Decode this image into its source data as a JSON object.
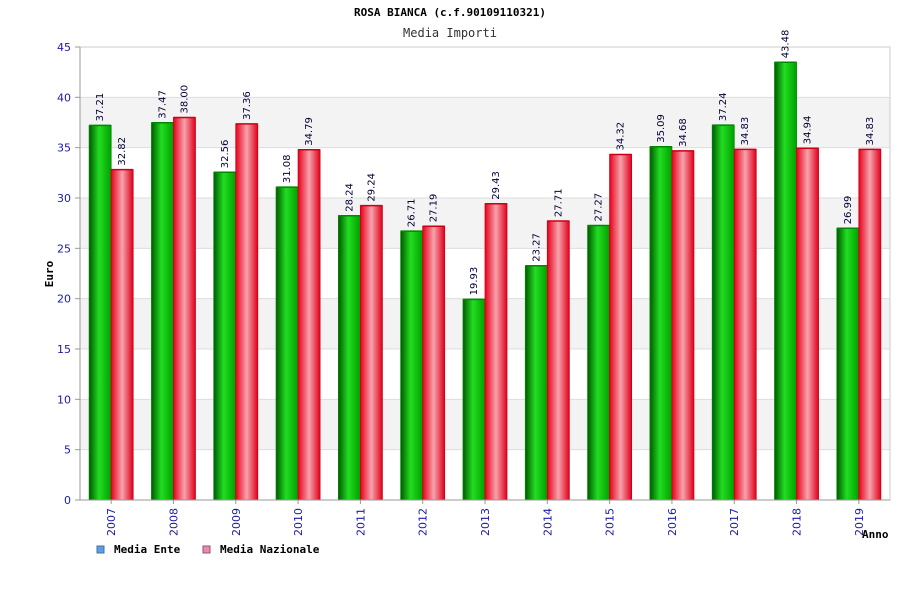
{
  "chart_data": {
    "type": "bar",
    "title": "ROSA BIANCA (c.f.90109110321)",
    "subtitle": "Media Importi",
    "xlabel": "Anno",
    "ylabel": "Euro",
    "ylim": [
      0,
      45
    ],
    "yticks": [
      0,
      5,
      10,
      15,
      20,
      25,
      30,
      35,
      40,
      45
    ],
    "grid": true,
    "legend_position": "bottom-left",
    "categories": [
      "2007",
      "2008",
      "2009",
      "2010",
      "2011",
      "2012",
      "2013",
      "2014",
      "2015",
      "2016",
      "2017",
      "2018",
      "2019"
    ],
    "series": [
      {
        "name": "Media Ente",
        "color": "#00b400",
        "legend_color": "#5aa0e6",
        "values": [
          37.21,
          37.47,
          32.56,
          31.08,
          28.24,
          26.71,
          19.93,
          23.27,
          27.27,
          35.09,
          37.24,
          43.48,
          26.99
        ],
        "labels": [
          "37.21",
          "37.47",
          "32.56",
          "31.08",
          "28.24",
          "26.71",
          "19.93",
          "23.27",
          "27.27",
          "35.09",
          "37.24",
          "43.48",
          "26.99"
        ]
      },
      {
        "name": "Media Nazionale",
        "color": "#e60014",
        "legend_color": "#e68cb4",
        "values": [
          32.82,
          38.0,
          37.36,
          34.79,
          29.24,
          27.19,
          29.43,
          27.71,
          34.32,
          34.68,
          34.83,
          34.94,
          34.83
        ],
        "labels": [
          "32.82",
          "38.00",
          "37.36",
          "34.79",
          "29.24",
          "27.19",
          "29.43",
          "27.71",
          "34.32",
          "34.68",
          "34.83",
          "34.94",
          "34.83"
        ]
      }
    ]
  }
}
